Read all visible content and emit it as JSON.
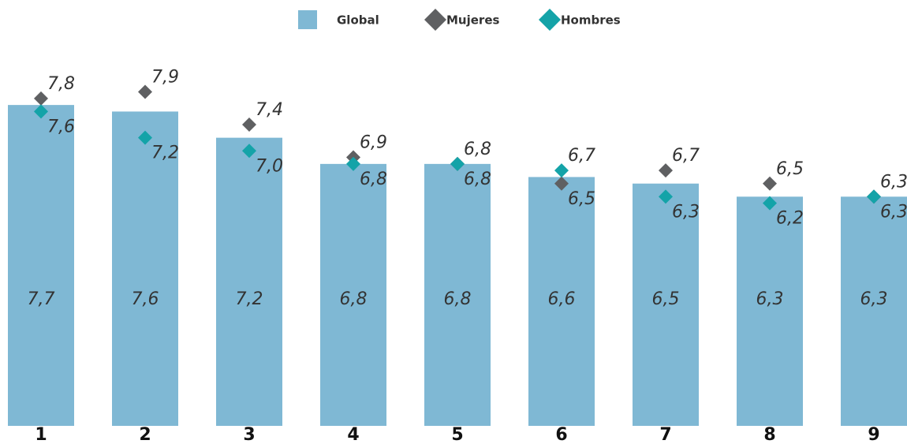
{
  "chart_data": {
    "type": "bar",
    "categories": [
      "1",
      "2",
      "3",
      "4",
      "5",
      "6",
      "7",
      "8",
      "9"
    ],
    "ylim": [
      2.8,
      8.4
    ],
    "series": [
      {
        "name": "Global",
        "type": "bar",
        "color": "#7fb8d4",
        "values": [
          7.7,
          7.6,
          7.2,
          6.8,
          6.8,
          6.6,
          6.5,
          6.3,
          6.3
        ],
        "value_labels": [
          "7,7",
          "7,6",
          "7,2",
          "6,8",
          "6,8",
          "6,6",
          "6,5",
          "6,3",
          "6,3"
        ]
      },
      {
        "name": "Mujeres",
        "type": "scatter",
        "color": "#5f6062",
        "values": [
          7.8,
          7.9,
          7.4,
          6.9,
          6.8,
          6.5,
          6.7,
          6.5,
          6.3
        ],
        "value_labels": [
          "7,8",
          "7,9",
          "7,4",
          "6,9",
          "6,8",
          "6,5",
          "6,7",
          "6,5",
          "6,3"
        ]
      },
      {
        "name": "Hombres",
        "type": "scatter",
        "color": "#14a3a8",
        "values": [
          7.6,
          7.2,
          7.0,
          6.8,
          6.8,
          6.7,
          6.3,
          6.2,
          6.3
        ],
        "value_labels": [
          "7,6",
          "7,2",
          "7,0",
          "6,8",
          "6,8",
          "6,7",
          "6,3",
          "6,2",
          "6,3"
        ]
      }
    ]
  }
}
